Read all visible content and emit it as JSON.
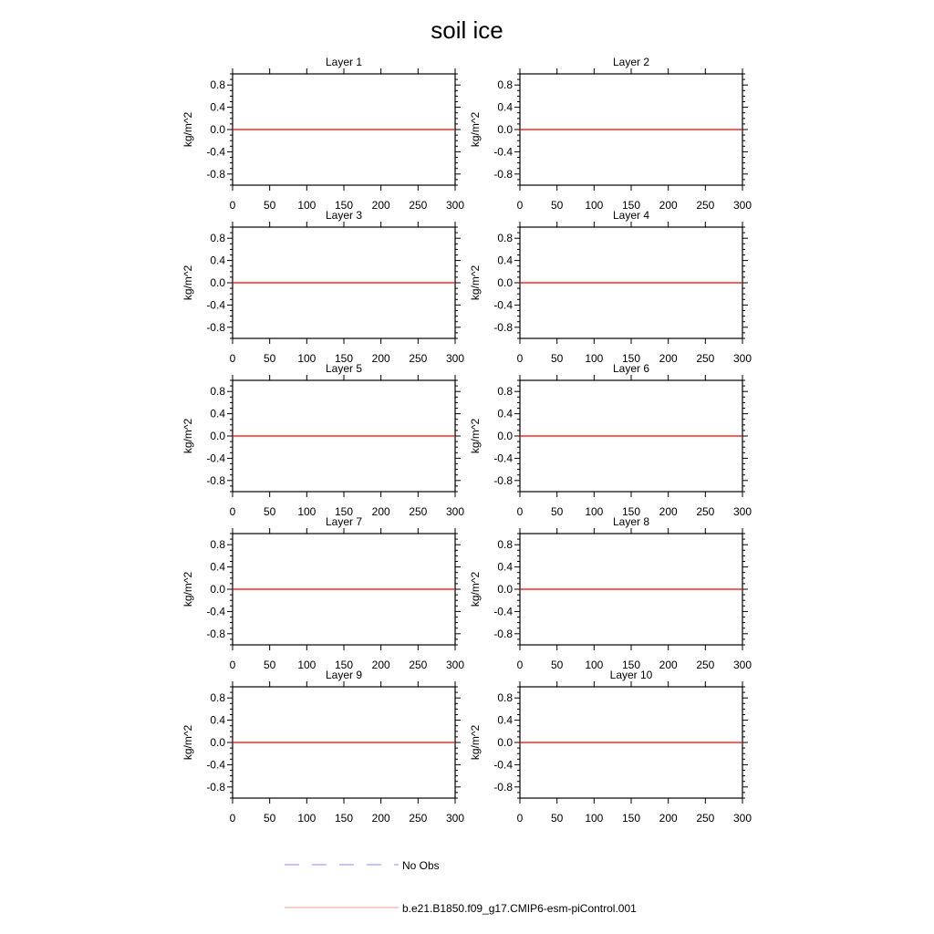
{
  "chart_data": {
    "title": "soil ice",
    "type": "line",
    "panels": [
      {
        "title": "Layer 1"
      },
      {
        "title": "Layer 2"
      },
      {
        "title": "Layer 3"
      },
      {
        "title": "Layer 4"
      },
      {
        "title": "Layer 5"
      },
      {
        "title": "Layer 6"
      },
      {
        "title": "Layer 7"
      },
      {
        "title": "Layer 8"
      },
      {
        "title": "Layer 9"
      },
      {
        "title": "Layer 10"
      }
    ],
    "ylabel": "kg/m^2",
    "xlabel": "",
    "xlim": [
      0,
      300
    ],
    "ylim": [
      -1,
      1
    ],
    "xticks": [
      "0",
      "50",
      "100",
      "150",
      "200",
      "250",
      "300"
    ],
    "yticks": [
      "0.8",
      "0.4",
      "0.0",
      "-0.4",
      "-0.8"
    ],
    "grid": false,
    "series": [
      {
        "name": "No Obs",
        "color": "#8888ff",
        "style": "dashed",
        "x": [],
        "y": []
      },
      {
        "name": "b.e21.B1850.f09_g17.CMIP6-esm-piControl.001",
        "color": "#ff0000",
        "legend_color": "#ff9999",
        "style": "solid",
        "x": [
          0,
          300
        ],
        "y": [
          0,
          0
        ]
      }
    ],
    "legend_placement": "bottom"
  }
}
